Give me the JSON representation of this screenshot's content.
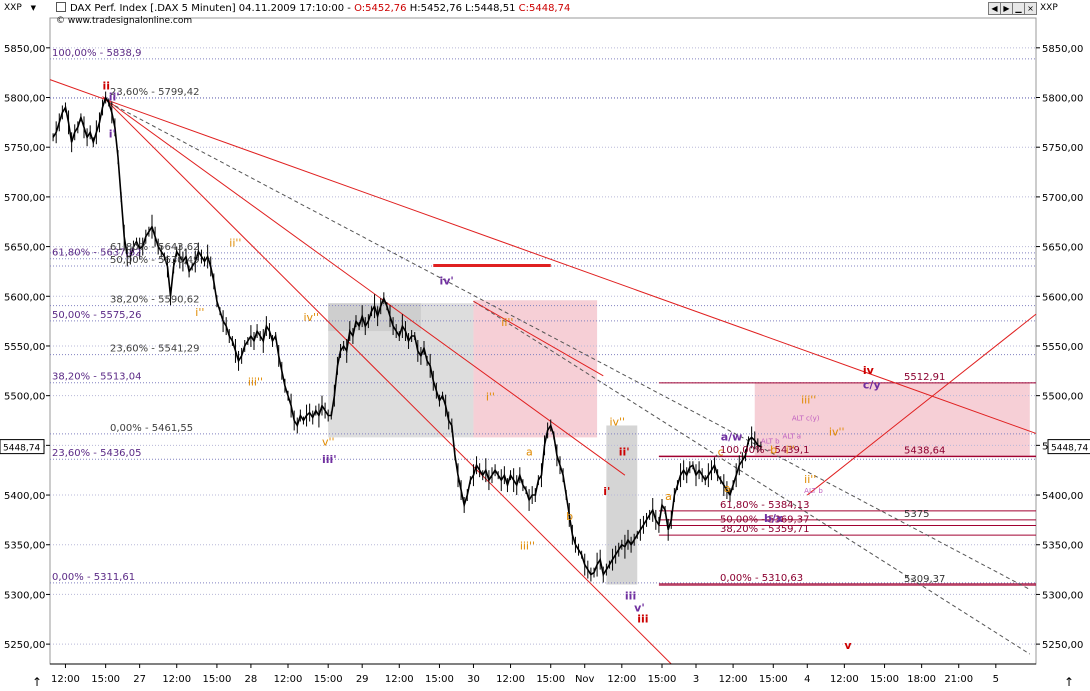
{
  "toolbar": {
    "symbol_left": "XXP",
    "symbol_right": "XXP",
    "title": "DAX Perf. Index [.DAX  5 Minuten] 04.11.2009 17:10:00 - ",
    "open": "O:5452,76",
    "high": "H:5452,76",
    "low": "L:5448,51",
    "close": "C:5448,74",
    "copyright": "© www.tradesignalonline.com",
    "current_price": "5448,74"
  },
  "chart_data": {
    "type": "line",
    "title": "DAX Perf. Index [.DAX  5 Minuten] 04.11.2009 17:10:00",
    "ylim": [
      5230,
      5880
    ],
    "y_ticks": [
      5250,
      5300,
      5350,
      5400,
      5450,
      5500,
      5550,
      5600,
      5650,
      5700,
      5750,
      5800,
      5850
    ],
    "y_tick_labels": [
      "5250,00",
      "5300,00",
      "5350,00",
      "5400,00",
      "5450,00",
      "5500,00",
      "5550,00",
      "5600,00",
      "5650,00",
      "5700,00",
      "5750,00",
      "5800,00",
      "5850,00"
    ],
    "x_ticks": [
      {
        "i": 4,
        "label": "12:00"
      },
      {
        "i": 17,
        "label": "15:00"
      },
      {
        "i": 28,
        "label": "27"
      },
      {
        "i": 40,
        "label": "12:00"
      },
      {
        "i": 53,
        "label": "15:00"
      },
      {
        "i": 64,
        "label": "28"
      },
      {
        "i": 76,
        "label": "12:00"
      },
      {
        "i": 89,
        "label": "15:00"
      },
      {
        "i": 100,
        "label": "29"
      },
      {
        "i": 112,
        "label": "12:00"
      },
      {
        "i": 125,
        "label": "15:00"
      },
      {
        "i": 136,
        "label": "30"
      },
      {
        "i": 148,
        "label": "12:00"
      },
      {
        "i": 161,
        "label": "15:00"
      },
      {
        "i": 172,
        "label": "Nov"
      },
      {
        "i": 184,
        "label": "12:00"
      },
      {
        "i": 197,
        "label": "15:00"
      },
      {
        "i": 208,
        "label": "3"
      },
      {
        "i": 220,
        "label": "12:00"
      },
      {
        "i": 233,
        "label": "15:00"
      },
      {
        "i": 244,
        "label": "4"
      },
      {
        "i": 256,
        "label": "12:00"
      },
      {
        "i": 269,
        "label": "15:00"
      },
      {
        "i": 281,
        "label": "18:00"
      },
      {
        "i": 293,
        "label": "21:00"
      },
      {
        "i": 305,
        "label": "5"
      }
    ],
    "x_range": [
      -1,
      318
    ],
    "series": [
      {
        "values": [
          5760,
          5765,
          5775,
          5785,
          5790,
          5775,
          5755,
          5765,
          5770,
          5780,
          5770,
          5760,
          5765,
          5755,
          5765,
          5775,
          5790,
          5800,
          5795,
          5785,
          5770,
          5740,
          5700,
          5660,
          5640,
          5640,
          5650,
          5655,
          5648,
          5650,
          5660,
          5665,
          5670,
          5660,
          5650,
          5645,
          5640,
          5630,
          5600,
          5630,
          5645,
          5640,
          5635,
          5640,
          5625,
          5630,
          5635,
          5645,
          5640,
          5635,
          5640,
          5630,
          5615,
          5595,
          5585,
          5575,
          5570,
          5560,
          5555,
          5545,
          5535,
          5540,
          5550,
          5555,
          5560,
          5555,
          5565,
          5560,
          5555,
          5570,
          5565,
          5555,
          5560,
          5540,
          5525,
          5510,
          5500,
          5490,
          5475,
          5470,
          5480,
          5475,
          5480,
          5483,
          5478,
          5485,
          5480,
          5490,
          5485,
          5480,
          5480,
          5500,
          5530,
          5545,
          5550,
          5545,
          5565,
          5560,
          5575,
          5570,
          5580,
          5570,
          5575,
          5585,
          5590,
          5580,
          5590,
          5598,
          5590,
          5580,
          5570,
          5565,
          5560,
          5570,
          5565,
          5555,
          5560,
          5560,
          5545,
          5540,
          5548,
          5535,
          5530,
          5515,
          5505,
          5495,
          5500,
          5490,
          5475,
          5470,
          5440,
          5420,
          5405,
          5390,
          5400,
          5415,
          5420,
          5430,
          5425,
          5420,
          5425,
          5415,
          5420,
          5425,
          5420,
          5415,
          5420,
          5410,
          5420,
          5415,
          5410,
          5420,
          5410,
          5405,
          5395,
          5400,
          5400,
          5415,
          5420,
          5450,
          5465,
          5470,
          5460,
          5440,
          5430,
          5420,
          5400,
          5380,
          5360,
          5350,
          5345,
          5340,
          5330,
          5325,
          5320,
          5322,
          5330,
          5335,
          5320,
          5325,
          5330,
          5335,
          5340,
          5345,
          5350,
          5348,
          5355,
          5350,
          5355,
          5360,
          5365,
          5370,
          5375,
          5380,
          5385,
          5375,
          5370,
          5390,
          5385,
          5365,
          5375,
          5400,
          5410,
          5420,
          5425,
          5420,
          5428,
          5430,
          5420,
          5425,
          5420,
          5415,
          5420,
          5425,
          5430,
          5420,
          5415,
          5410,
          5405,
          5400,
          5410,
          5420,
          5430,
          5435,
          5440,
          5455,
          5458,
          5455,
          5450,
          5448.74
        ]
      }
    ],
    "y_axis_labels": [
      {
        "text": "5448,74",
        "y": 5448.74
      }
    ],
    "fib_labels_left": [
      {
        "text": "100,00% - 5838,9",
        "y": 5838.9
      },
      {
        "text": "61,80% - 5637,82",
        "y": 5637.82
      },
      {
        "text": "50,00% - 5575,26",
        "y": 5575.26
      },
      {
        "text": "38,20% - 5513,04",
        "y": 5513.04
      },
      {
        "text": "23,60% - 5436,05",
        "y": 5436.05
      },
      {
        "text": "0,00% - 5311,61",
        "y": 5311.61
      }
    ],
    "fib_labels_mid": [
      {
        "text": "23,60% - 5799,42",
        "y": 5799.42
      },
      {
        "text": "61,80% - 5643,62",
        "y": 5643.62
      },
      {
        "text": "50,00% - 5630,49",
        "y": 5630.49
      },
      {
        "text": "38,20% - 5590,62",
        "y": 5590.62
      },
      {
        "text": "23,60% - 5541,29",
        "y": 5541.29
      },
      {
        "text": "0,00% - 5461,55",
        "y": 5461.55
      }
    ],
    "fib_labels_right": [
      {
        "text": "100,00% - 5439,1",
        "y": 5439.1
      },
      {
        "text": "61,80% - 5384,13",
        "y": 5384.13
      },
      {
        "text": "50,00% - 5369,37",
        "y": 5369.37
      },
      {
        "text": "38,20% - 5359,71",
        "y": 5359.71
      },
      {
        "text": "0,00% - 5310,63",
        "y": 5310.63
      }
    ],
    "level_labels": [
      {
        "text": "5512,91",
        "y": 5512.91
      },
      {
        "text": "5438,64",
        "y": 5438.64
      },
      {
        "text": "5375",
        "y": 5375
      },
      {
        "text": "5309,37",
        "y": 5309.37
      }
    ],
    "wave_labels": [
      {
        "text": "ii",
        "i": 16,
        "y": 5808,
        "color": "#cc0000"
      },
      {
        "text": "ii'",
        "i": 18,
        "y": 5797,
        "color": "#7030a0"
      },
      {
        "text": "i'",
        "i": 18,
        "y": 5760,
        "color": "#7030a0"
      },
      {
        "text": "ii''",
        "i": 57,
        "y": 5650,
        "color": "#e08a00"
      },
      {
        "text": "i''",
        "i": 46,
        "y": 5580,
        "color": "#e08a00"
      },
      {
        "text": "iv''",
        "i": 81,
        "y": 5575,
        "color": "#e08a00"
      },
      {
        "text": "iii''",
        "i": 63,
        "y": 5510,
        "color": "#e08a00"
      },
      {
        "text": "v''",
        "i": 87,
        "y": 5450,
        "color": "#e08a00"
      },
      {
        "text": "iii'",
        "i": 87,
        "y": 5432,
        "color": "#7030a0"
      },
      {
        "text": "iv'",
        "i": 125,
        "y": 5612,
        "color": "#7030a0"
      },
      {
        "text": "ii''",
        "i": 145,
        "y": 5570,
        "color": "#e08a00"
      },
      {
        "text": "i''",
        "i": 140,
        "y": 5495,
        "color": "#e08a00"
      },
      {
        "text": "a",
        "i": 153,
        "y": 5440,
        "color": "#e08a00"
      },
      {
        "text": "b",
        "i": 166,
        "y": 5375,
        "color": "#e08a00"
      },
      {
        "text": "iii''",
        "i": 151,
        "y": 5345,
        "color": "#e08a00"
      },
      {
        "text": "iv''",
        "i": 180,
        "y": 5470,
        "color": "#e08a00"
      },
      {
        "text": "ii'",
        "i": 183,
        "y": 5440,
        "color": "#cc0000"
      },
      {
        "text": "i'",
        "i": 178,
        "y": 5400,
        "color": "#cc0000"
      },
      {
        "text": "iii",
        "i": 185,
        "y": 5295,
        "color": "#7030a0"
      },
      {
        "text": "v'",
        "i": 188,
        "y": 5283,
        "color": "#7030a0"
      },
      {
        "text": "iii",
        "i": 189,
        "y": 5272,
        "color": "#cc0000"
      },
      {
        "text": "a",
        "i": 198,
        "y": 5395,
        "color": "#e08a00"
      },
      {
        "text": "a/w",
        "i": 216,
        "y": 5455,
        "color": "#7030a0"
      },
      {
        "text": "c",
        "i": 215,
        "y": 5440,
        "color": "#e08a00"
      },
      {
        "text": "a",
        "i": 217,
        "y": 5403,
        "color": "#e08a00"
      },
      {
        "text": "b",
        "i": 232,
        "y": 5442,
        "color": "#e08a00"
      },
      {
        "text": "i''",
        "i": 237,
        "y": 5442,
        "color": "#e08a00"
      },
      {
        "text": "ii''",
        "i": 243,
        "y": 5412,
        "color": "#e08a00"
      },
      {
        "text": "iii''",
        "i": 242,
        "y": 5492,
        "color": "#e08a00"
      },
      {
        "text": "iv''",
        "i": 251,
        "y": 5460,
        "color": "#e08a00"
      },
      {
        "text": "b/x",
        "i": 230,
        "y": 5373,
        "color": "#7030a0"
      },
      {
        "text": "iv",
        "i": 262,
        "y": 5522,
        "color": "#cc0000"
      },
      {
        "text": "c/y",
        "i": 262,
        "y": 5507,
        "color": "#7030a0"
      },
      {
        "text": "v",
        "i": 256,
        "y": 5245,
        "color": "#cc0000"
      }
    ],
    "alt_labels": [
      {
        "text": "ALT c(y)",
        "i": 239,
        "y": 5475
      },
      {
        "text": "ALT b",
        "i": 229,
        "y": 5452
      },
      {
        "text": "ALT a",
        "i": 236,
        "y": 5457
      },
      {
        "text": "ALT b",
        "i": 243,
        "y": 5402
      }
    ]
  }
}
